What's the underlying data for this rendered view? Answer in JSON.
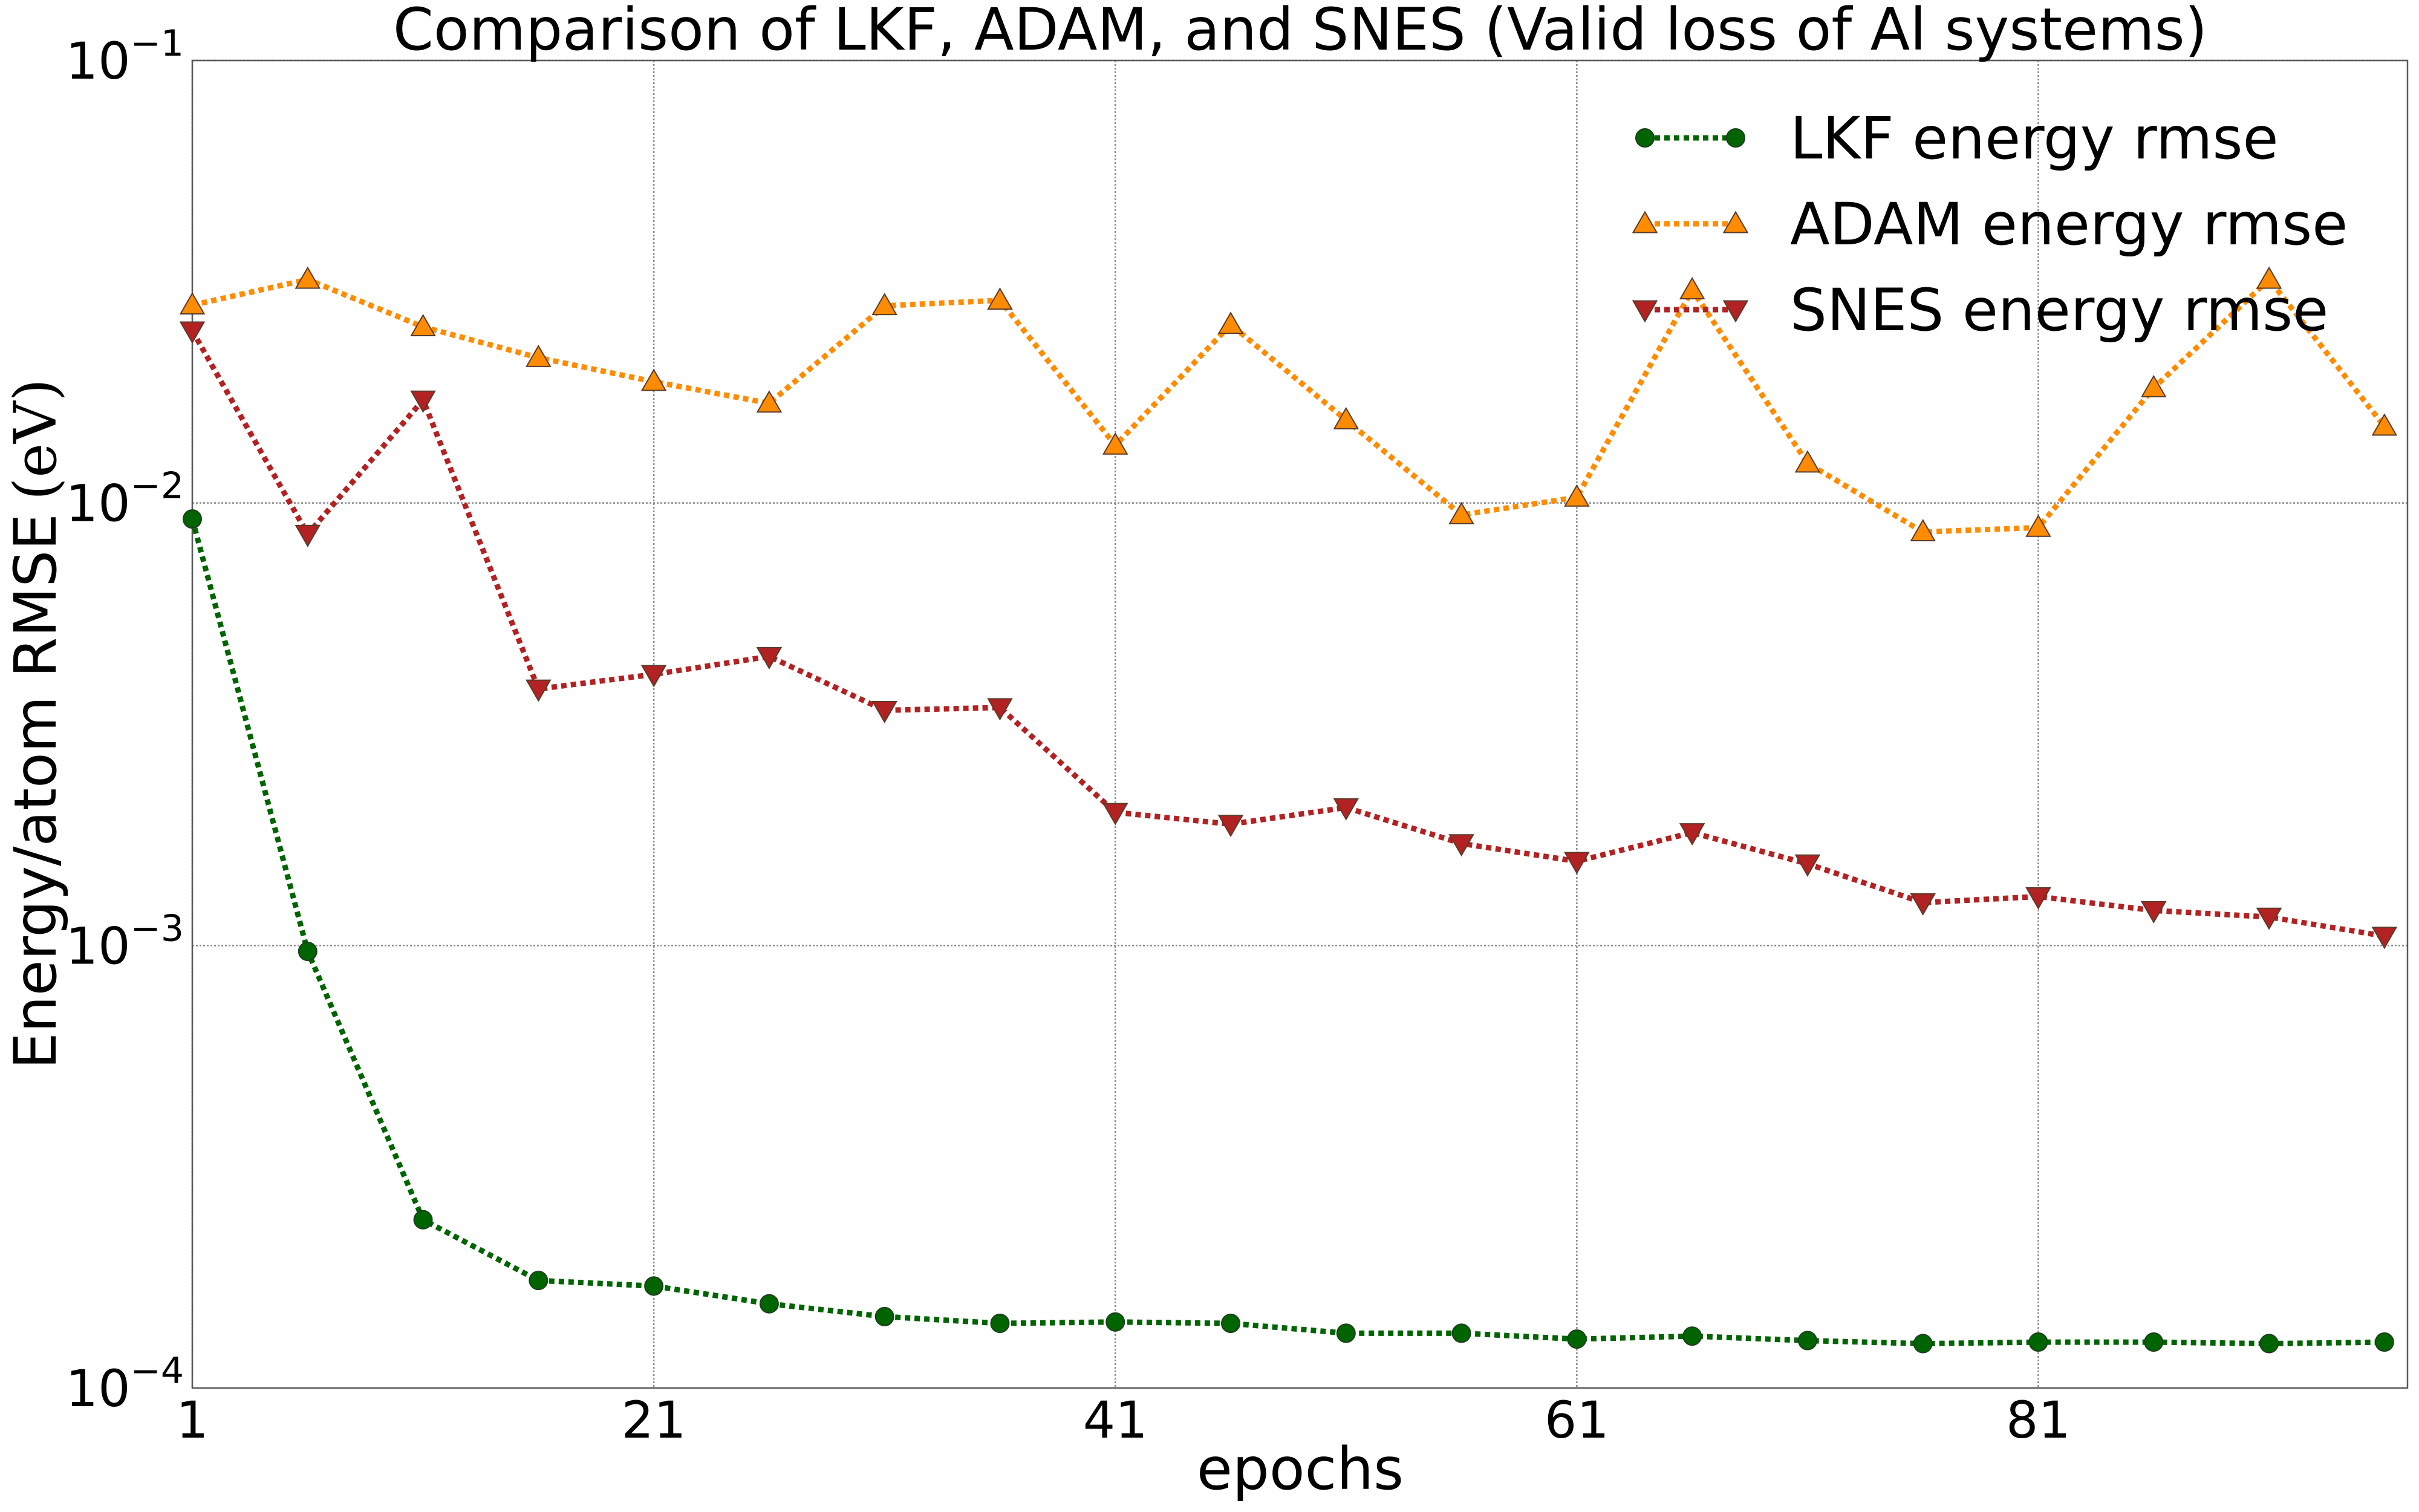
{
  "chart_data": {
    "type": "line",
    "title": "Comparison of LKF, ADAM, and SNES (Valid loss of Al systems)",
    "xlabel": "epochs",
    "ylabel": "Energy/atom RMSE",
    "ylabel_unit": "(eV)",
    "y_scale": "log",
    "xlim": [
      1,
      97
    ],
    "ylim": [
      0.0001,
      0.1
    ],
    "x_ticks": [
      1,
      21,
      41,
      61,
      81
    ],
    "y_ticks": [
      {
        "value": 0.0001,
        "base": "10",
        "exp": "−4"
      },
      {
        "value": 0.001,
        "base": "10",
        "exp": "−3"
      },
      {
        "value": 0.01,
        "base": "10",
        "exp": "−2"
      },
      {
        "value": 0.1,
        "base": "10",
        "exp": "−1"
      }
    ],
    "grid": true,
    "legend_position": "top-right",
    "x": [
      1,
      6,
      11,
      16,
      21,
      26,
      31,
      36,
      41,
      46,
      51,
      56,
      61,
      66,
      71,
      76,
      81,
      86,
      91,
      96
    ],
    "series": [
      {
        "name": "LKF energy rmse",
        "color": "#006400",
        "marker": "circle",
        "values": [
          0.0092,
          0.00097,
          0.00024,
          0.000175,
          0.00017,
          0.000155,
          0.000145,
          0.00014,
          0.000141,
          0.00014,
          0.000133,
          0.000133,
          0.000129,
          0.000131,
          0.000128,
          0.000126,
          0.000127,
          0.000127,
          0.000126,
          0.000127
        ]
      },
      {
        "name": "ADAM energy rmse",
        "color": "#ff8c00",
        "marker": "triangle-up",
        "values": [
          0.028,
          0.032,
          0.025,
          0.0213,
          0.0188,
          0.0168,
          0.0279,
          0.0287,
          0.0135,
          0.0253,
          0.0154,
          0.0094,
          0.0103,
          0.0303,
          0.0123,
          0.0086,
          0.0088,
          0.0182,
          0.032,
          0.0149
        ]
      },
      {
        "name": "SNES energy rmse",
        "color": "#b22222",
        "marker": "triangle-down",
        "values": [
          0.0245,
          0.0085,
          0.0171,
          0.0038,
          0.0041,
          0.0045,
          0.0034,
          0.00345,
          0.002,
          0.00188,
          0.00205,
          0.0017,
          0.00155,
          0.0018,
          0.00153,
          0.00125,
          0.00129,
          0.0012,
          0.00116,
          0.00105
        ]
      }
    ]
  }
}
